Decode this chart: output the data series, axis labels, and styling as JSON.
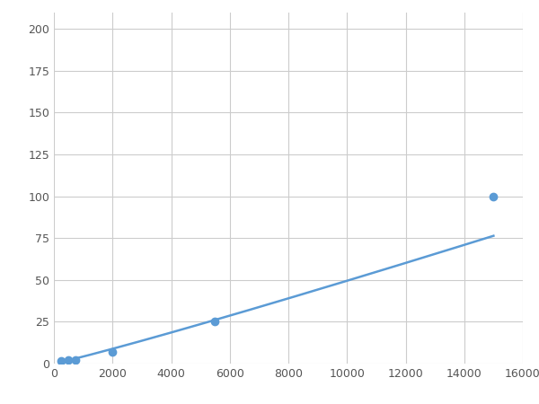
{
  "x": [
    250,
    500,
    750,
    2000,
    5500,
    15000
  ],
  "y": [
    1.5,
    2.0,
    2.0,
    7.0,
    25.0,
    100.0
  ],
  "marker_x": [
    250,
    500,
    750,
    2000,
    5500,
    15000
  ],
  "marker_y": [
    1.5,
    2.0,
    2.0,
    7.0,
    25.0,
    100.0
  ],
  "line_color": "#5b9bd5",
  "marker_color": "#5b9bd5",
  "marker_size": 6,
  "line_width": 1.8,
  "xlim": [
    0,
    16000
  ],
  "ylim": [
    0,
    210
  ],
  "xticks": [
    0,
    2000,
    4000,
    6000,
    8000,
    10000,
    12000,
    14000,
    16000
  ],
  "yticks": [
    0,
    25,
    50,
    75,
    100,
    125,
    150,
    175,
    200
  ],
  "grid_color": "#cccccc",
  "bg_color": "#ffffff",
  "figsize": [
    6.0,
    4.5
  ],
  "dpi": 100
}
